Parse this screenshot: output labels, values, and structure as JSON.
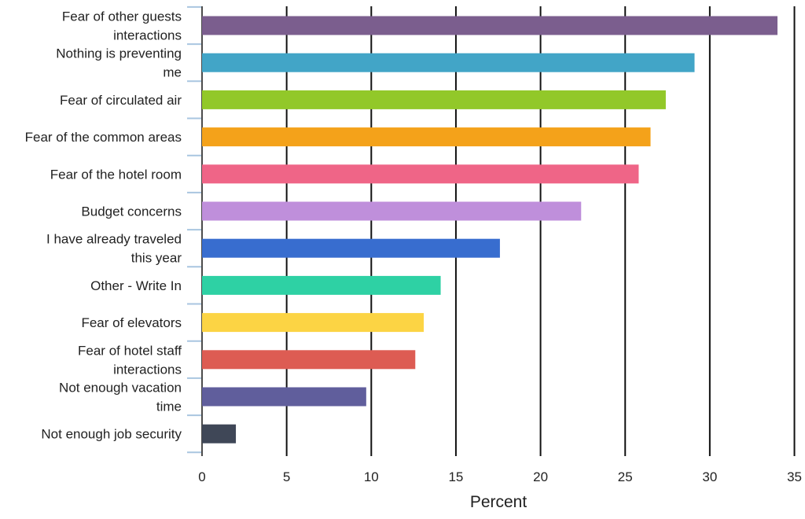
{
  "chart_data": {
    "type": "bar",
    "orientation": "horizontal",
    "title": "",
    "xlabel": "Percent",
    "ylabel": "",
    "xlim": [
      0,
      35
    ],
    "xticks": [
      "0",
      "5",
      "10",
      "15",
      "20",
      "25",
      "30",
      "35"
    ],
    "xtick_values": [
      0,
      5,
      10,
      15,
      20,
      25,
      30,
      35
    ],
    "grid": true,
    "legend": "none",
    "categories": [
      [
        "Fear of other guests",
        "interactions"
      ],
      [
        "Nothing is preventing",
        "me"
      ],
      [
        "Fear of circulated air"
      ],
      [
        "Fear of the common areas"
      ],
      [
        "Fear of the hotel room"
      ],
      [
        "Budget concerns"
      ],
      [
        "I have already traveled",
        "this year"
      ],
      [
        "Other - Write In"
      ],
      [
        "Fear of elevators"
      ],
      [
        "Fear of hotel staff",
        "interactions"
      ],
      [
        "Not enough vacation",
        "time"
      ],
      [
        "Not enough job security"
      ]
    ],
    "values": [
      34.0,
      29.1,
      27.4,
      26.5,
      25.8,
      22.4,
      17.6,
      14.1,
      13.1,
      12.6,
      9.7,
      2.0
    ],
    "colors": [
      "#7b5e8e",
      "#42a5c7",
      "#92c829",
      "#f4a21a",
      "#ef6587",
      "#bf8fdb",
      "#386dcf",
      "#2ed1a4",
      "#fcd444",
      "#dd5c53",
      "#605e9c",
      "#3f4757"
    ]
  }
}
